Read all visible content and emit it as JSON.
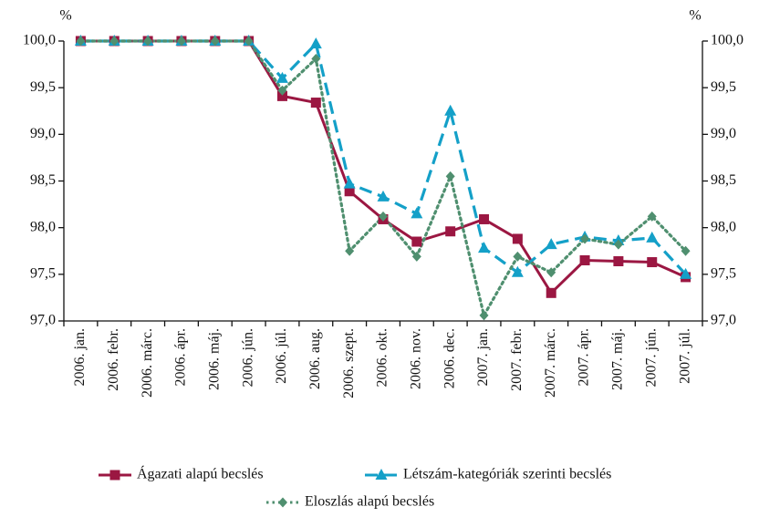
{
  "chart_data": {
    "type": "line",
    "y_unit": "%",
    "y2_unit": "%",
    "categories": [
      "2006. jan.",
      "2006. febr.",
      "2006. márc.",
      "2006. ápr.",
      "2006. máj.",
      "2006. jún.",
      "2006. júl.",
      "2006. aug.",
      "2006. szept.",
      "2006. okt.",
      "2006. nov.",
      "2006. dec.",
      "2007. jan.",
      "2007. febr.",
      "2007. márc.",
      "2007. ápr.",
      "2007. máj.",
      "2007. jún.",
      "2007. júl."
    ],
    "series": [
      {
        "name": "Ágazati alapú becslés",
        "color": "#9b1742",
        "marker": "square",
        "dash": "solid",
        "values": [
          100,
          100,
          100,
          100,
          100,
          100,
          99.41,
          99.34,
          98.39,
          98.09,
          97.85,
          97.96,
          98.09,
          97.88,
          97.3,
          97.65,
          97.64,
          97.63,
          97.47
        ]
      },
      {
        "name": "Létszám-kategóriák szerinti becslés",
        "color": "#14a0c8",
        "marker": "triangle",
        "dash": "dashed",
        "values": [
          100,
          100,
          100,
          100,
          100,
          100,
          99.6,
          99.97,
          98.47,
          98.33,
          98.15,
          99.25,
          97.78,
          97.52,
          97.82,
          97.9,
          97.86,
          97.89,
          97.5
        ]
      },
      {
        "name": "Eloszlás alapú becslés",
        "color": "#4f8f6f",
        "marker": "diamond",
        "dash": "dotted",
        "values": [
          100,
          100,
          100,
          100,
          100,
          100,
          99.47,
          99.81,
          97.75,
          98.12,
          97.69,
          98.55,
          97.06,
          97.69,
          97.52,
          97.88,
          97.82,
          98.12,
          97.75
        ]
      }
    ],
    "ylim": [
      97,
      100
    ],
    "yticks": [
      {
        "value": 97,
        "label": "97,0"
      },
      {
        "value": 97.5,
        "label": "97,5"
      },
      {
        "value": 98,
        "label": "98,0"
      },
      {
        "value": 98.5,
        "label": "98,5"
      },
      {
        "value": 99,
        "label": "99,0"
      },
      {
        "value": 99.5,
        "label": "99,5"
      },
      {
        "value": 100,
        "label": "100,0"
      }
    ],
    "y2lim": [
      97,
      100
    ],
    "y2ticks": [
      {
        "value": 97,
        "label": "97,0"
      },
      {
        "value": 97.5,
        "label": "97,5"
      },
      {
        "value": 98,
        "label": "98,0"
      },
      {
        "value": 98.5,
        "label": "98,5"
      },
      {
        "value": 99,
        "label": "99,0"
      },
      {
        "value": 99.5,
        "label": "99,5"
      },
      {
        "value": 100,
        "label": "100,0"
      }
    ],
    "grid": false
  }
}
